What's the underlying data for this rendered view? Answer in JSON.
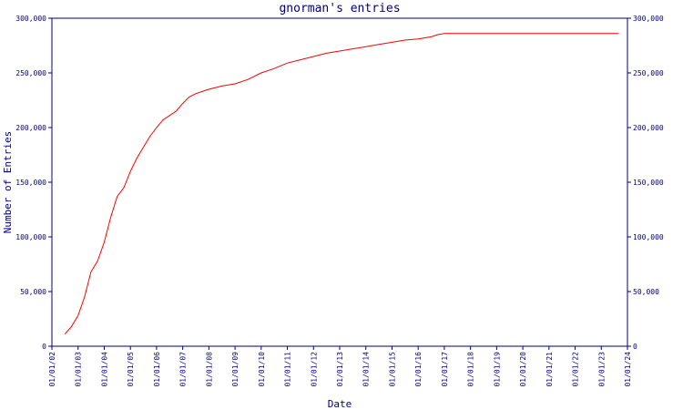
{
  "chart_data": {
    "type": "line",
    "title": "gnorman's entries",
    "xlabel": "Date",
    "ylabel": "Number of Entries",
    "ylim": [
      0,
      300000
    ],
    "xlim": [
      "2002-01-01",
      "2024-01-01"
    ],
    "y_ticks": [
      "0",
      "50,000",
      "100,000",
      "150,000",
      "200,000",
      "250,000",
      "300,000"
    ],
    "y_ticks_right": [
      "0",
      "50,000",
      "100,000",
      "150,000",
      "200,000",
      "250,000",
      "300,000"
    ],
    "x_ticks": [
      "01/01/02",
      "01/01/03",
      "01/01/04",
      "01/01/05",
      "01/01/06",
      "01/01/07",
      "01/01/08",
      "01/01/09",
      "01/01/10",
      "01/01/11",
      "01/01/12",
      "01/01/13",
      "01/01/14",
      "01/01/15",
      "01/01/16",
      "01/01/17",
      "01/01/18",
      "01/01/19",
      "01/01/20",
      "01/01/21",
      "01/01/22",
      "01/01/23",
      "01/01/24"
    ],
    "grid": false,
    "line_color": "#ff0000",
    "axis_color": "#000080",
    "series": [
      {
        "x": [
          "2002-07-01",
          "2002-10-01",
          "2003-01-01",
          "2003-04-01",
          "2003-07-01",
          "2003-10-01",
          "2004-01-01",
          "2004-04-01",
          "2004-07-01",
          "2004-10-01",
          "2005-01-01",
          "2005-04-01",
          "2005-07-01",
          "2005-10-01",
          "2006-01-01",
          "2006-04-01",
          "2006-07-01",
          "2006-10-01",
          "2007-01-01",
          "2007-04-01",
          "2007-07-01",
          "2007-10-01",
          "2008-01-01",
          "2008-07-01",
          "2009-01-01",
          "2009-07-01",
          "2010-01-01",
          "2010-07-01",
          "2011-01-01",
          "2011-07-01",
          "2012-01-01",
          "2012-07-01",
          "2013-01-01",
          "2013-07-01",
          "2014-01-01",
          "2014-07-01",
          "2015-01-01",
          "2015-07-01",
          "2016-01-01",
          "2016-07-01",
          "2016-10-01",
          "2017-01-01",
          "2018-01-01",
          "2019-01-01",
          "2020-01-01",
          "2021-01-01",
          "2022-01-01",
          "2023-01-01",
          "2023-09-01"
        ],
        "values": [
          11000,
          18000,
          28000,
          45000,
          68000,
          78000,
          95000,
          118000,
          137000,
          145000,
          160000,
          172000,
          182000,
          192000,
          200000,
          207000,
          211000,
          215000,
          222000,
          228000,
          231000,
          233000,
          235000,
          238000,
          240000,
          244000,
          250000,
          254000,
          259000,
          262000,
          265000,
          268000,
          270000,
          272000,
          274000,
          276000,
          278000,
          280000,
          281000,
          283000,
          285000,
          286000,
          286000,
          286000,
          286000,
          286000,
          286000,
          286000,
          286000
        ]
      }
    ]
  }
}
